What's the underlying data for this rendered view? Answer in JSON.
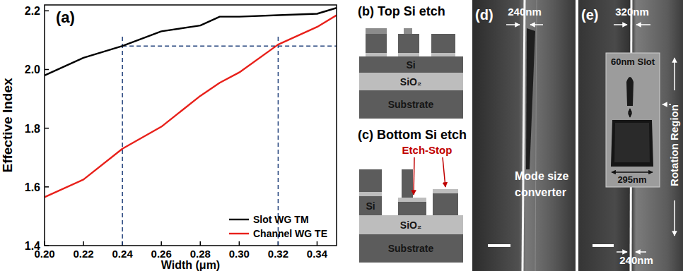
{
  "chart_data": {
    "type": "line",
    "panel_label": "(a)",
    "x_label": "Width (μm)",
    "y_label": "Effective Index",
    "x": [
      0.2,
      0.22,
      0.24,
      0.26,
      0.28,
      0.29,
      0.3,
      0.32,
      0.34,
      0.35
    ],
    "series": [
      {
        "name": "Slot WG TM",
        "color": "#000000",
        "values": [
          1.98,
          2.04,
          2.08,
          2.13,
          2.15,
          2.18,
          2.18,
          2.185,
          2.19,
          2.21
        ]
      },
      {
        "name": "Channel WG TE",
        "color": "#e8201a",
        "values": [
          1.565,
          1.625,
          1.73,
          1.805,
          1.91,
          1.955,
          1.99,
          2.085,
          2.145,
          2.185
        ]
      }
    ],
    "xlim": [
      0.2,
      0.35
    ],
    "xticks": [
      {
        "value": 0.2,
        "label": "0.20"
      },
      {
        "value": 0.22,
        "label": "0.22"
      },
      {
        "value": 0.24,
        "label": "0.24"
      },
      {
        "value": 0.26,
        "label": "0.26"
      },
      {
        "value": 0.28,
        "label": "0.28"
      },
      {
        "value": 0.3,
        "label": "0.30"
      },
      {
        "value": 0.32,
        "label": "0.32"
      },
      {
        "value": 0.34,
        "label": "0.34"
      }
    ],
    "ylim": [
      1.4,
      2.22
    ],
    "yticks": [
      1.4,
      1.6,
      1.8,
      {
        "value": 2.0,
        "label": "2.0"
      },
      2.2
    ],
    "legend": "lower right",
    "guides": {
      "x": [
        0.24,
        0.32
      ],
      "y": 2.08,
      "color": "#1f3f7a",
      "line_style": "dashed"
    }
  },
  "diagrams": [
    {
      "title": "(b) Top Si etch",
      "labels": {
        "si": "Si",
        "sio2": "SiO₂",
        "substrate": "Substrate"
      }
    },
    {
      "title": "(c) Bottom Si etch",
      "labels": {
        "si": "Si",
        "sio2": "SiO₂",
        "substrate": "Substrate",
        "etch_stop": "Etch-Stop"
      }
    }
  ],
  "micrographs": [
    {
      "label": "(d)",
      "top_width": "240nm",
      "region": "Mode size converter"
    },
    {
      "label": "(e)",
      "top_width": "320nm",
      "inset_slot": "60nm Slot",
      "inset_width": "295nm",
      "region": "Rotation Region",
      "bottom_width": "240nm"
    }
  ]
}
